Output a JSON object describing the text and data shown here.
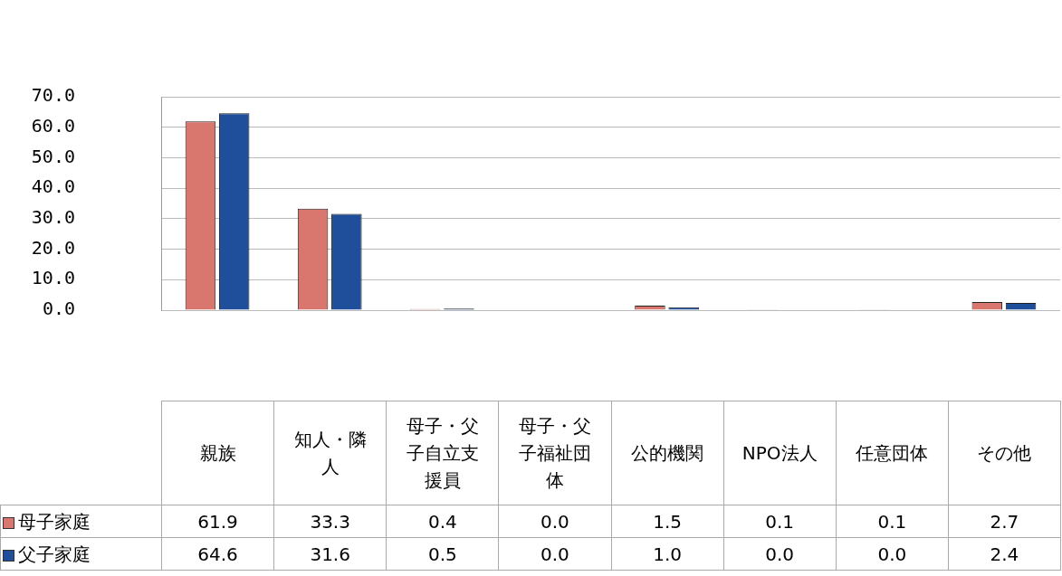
{
  "chart_data": {
    "type": "bar",
    "categories": [
      "親族",
      "知人・隣人",
      "母子・父子自立支援員",
      "母子・父子福祉団体",
      "公的機関",
      "NPO法人",
      "任意団体",
      "その他"
    ],
    "series": [
      {
        "name": "母子家庭",
        "color": "#d9776f",
        "values": [
          61.9,
          33.3,
          0.4,
          0.0,
          1.5,
          0.1,
          0.1,
          2.7
        ],
        "value_labels": [
          "61.9",
          "33.3",
          "0.4",
          "0.0",
          "1.5",
          "0.1",
          "0.1",
          "2.7"
        ]
      },
      {
        "name": "父子家庭",
        "color": "#1f4e9a",
        "values": [
          64.6,
          31.6,
          0.5,
          0.0,
          1.0,
          0.0,
          0.0,
          2.4
        ],
        "value_labels": [
          "64.6",
          "31.6",
          "0.5",
          "0.0",
          "1.0",
          "0.0",
          "0.0",
          "2.4"
        ]
      }
    ],
    "ylim": [
      0,
      70
    ],
    "yticks": [
      {
        "value": 0,
        "label": "0.0"
      },
      {
        "value": 10,
        "label": "10.0"
      },
      {
        "value": 20,
        "label": "20.0"
      },
      {
        "value": 30,
        "label": "30.0"
      },
      {
        "value": 40,
        "label": "40.0"
      },
      {
        "value": 50,
        "label": "50.0"
      },
      {
        "value": 60,
        "label": "60.0"
      },
      {
        "value": 70,
        "label": "70.0"
      }
    ],
    "grid": "y",
    "legend": "bottom left"
  }
}
